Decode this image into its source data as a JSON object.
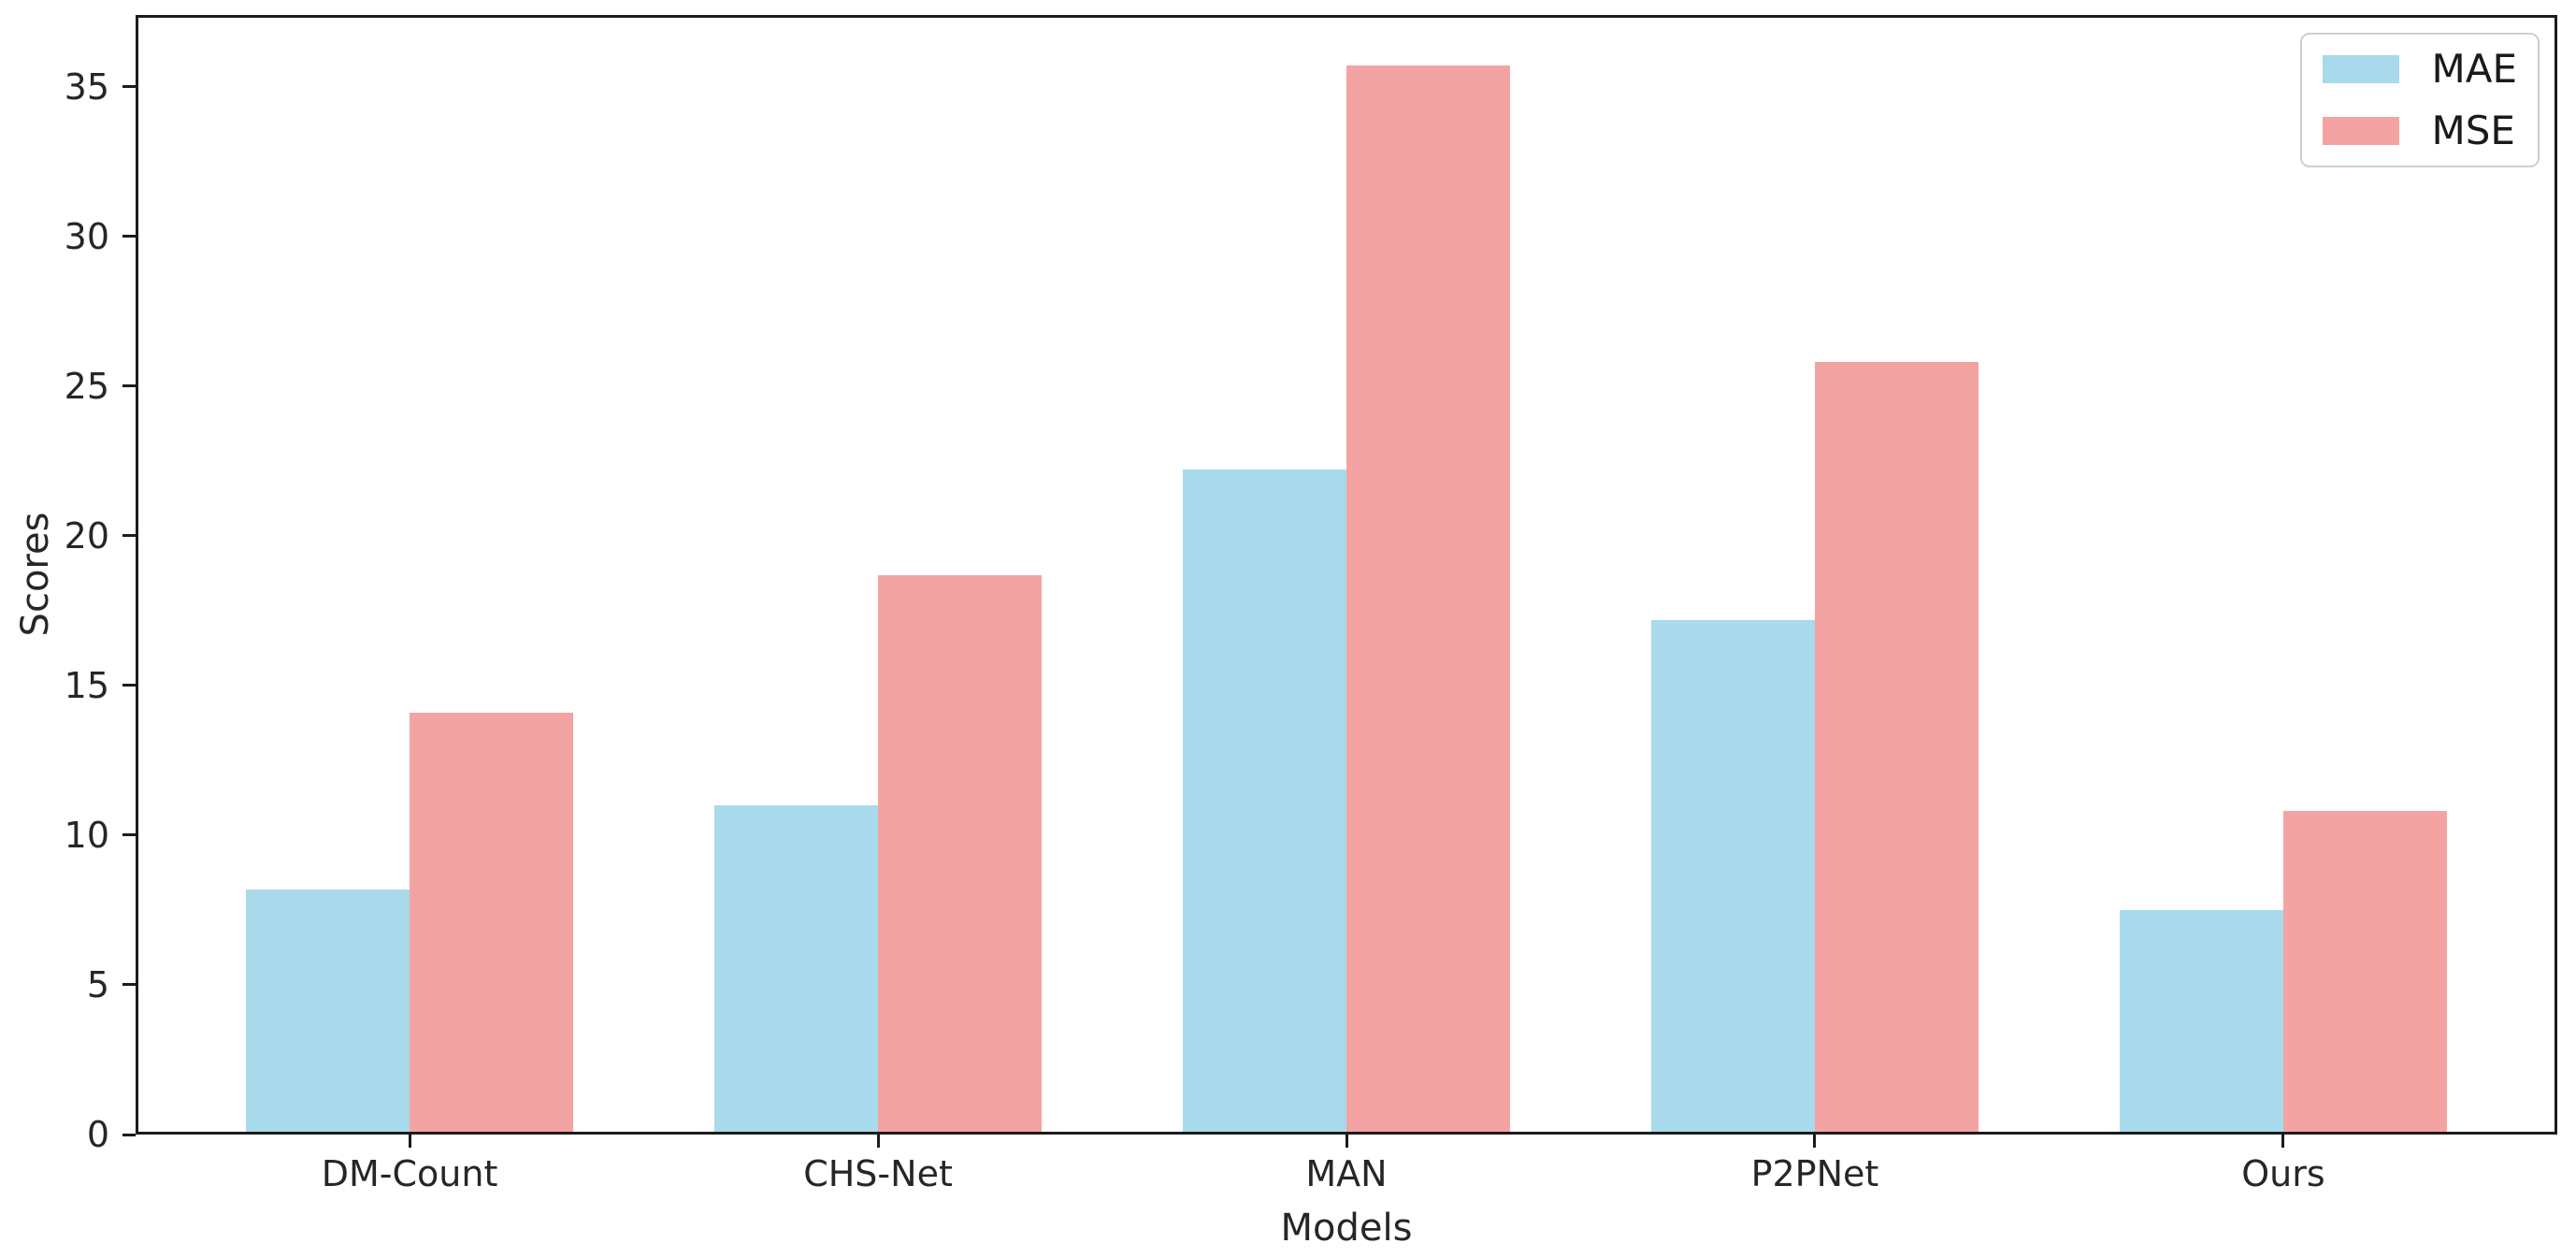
{
  "chart_data": {
    "type": "bar",
    "title": "",
    "xlabel": "Models",
    "ylabel": "Scores",
    "categories": [
      "DM-Count",
      "CHS-Net",
      "MAN",
      "P2PNet",
      "Ours"
    ],
    "series": [
      {
        "name": "MAE",
        "color": "#a8daec",
        "values": [
          8.2,
          11.0,
          22.2,
          17.2,
          7.5
        ]
      },
      {
        "name": "MSE",
        "color": "#f3a4a2",
        "values": [
          14.1,
          18.7,
          35.7,
          25.8,
          10.8
        ]
      }
    ],
    "yticks": [
      0,
      5,
      10,
      15,
      20,
      25,
      30,
      35
    ],
    "ylim": [
      0,
      37.4
    ],
    "bar_width_units": 0.35,
    "grid": false,
    "legend": {
      "position": "upper-right",
      "entries": [
        "MAE",
        "MSE"
      ]
    },
    "axis_color": "#1c1c1c",
    "text_color": "#262626",
    "background_color": "#ffffff"
  }
}
